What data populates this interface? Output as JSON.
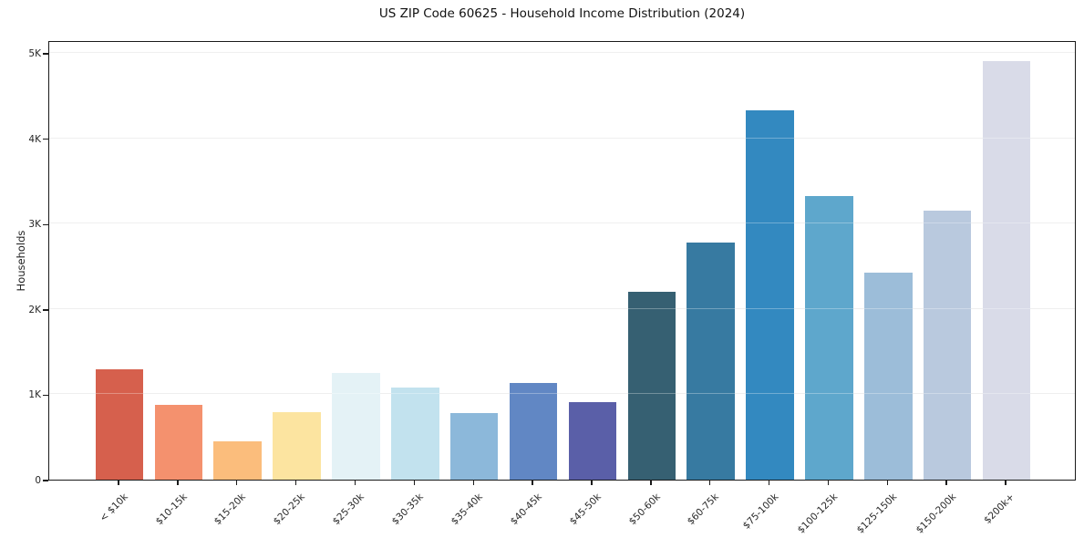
{
  "chart_data": {
    "type": "bar",
    "title": "US ZIP Code 60625 - Household Income Distribution (2024)",
    "xlabel": "",
    "ylabel": "Households",
    "categories": [
      "< $10k",
      "$10-15k",
      "$15-20k",
      "$20-25k",
      "$25-30k",
      "$30-35k",
      "$35-40k",
      "$40-45k",
      "$45-50k",
      "$50-60k",
      "$60-75k",
      "$75-100k",
      "$100-125k",
      "$125-150k",
      "$150-200k",
      "$200k+"
    ],
    "values": [
      1295,
      875,
      450,
      795,
      1255,
      1080,
      785,
      1135,
      905,
      2205,
      2775,
      4330,
      3325,
      2430,
      3150,
      4900
    ],
    "bar_colors": [
      "#d6604d",
      "#f4916e",
      "#fbbd7c",
      "#fce4a0",
      "#e4f2f6",
      "#c2e2ee",
      "#8cb8da",
      "#6187c4",
      "#5a5fa8",
      "#366072",
      "#377aa1",
      "#3389c0",
      "#5ea7cc",
      "#9cbdd9",
      "#b9c9de",
      "#d9dbe8"
    ],
    "ytick_labels": [
      "0",
      "1K",
      "2K",
      "3K",
      "4K",
      "5K"
    ],
    "ytick_values": [
      0,
      1000,
      2000,
      3000,
      4000,
      5000
    ],
    "ylim": [
      0,
      5150
    ],
    "grid": "horizontal",
    "legend": "none"
  }
}
